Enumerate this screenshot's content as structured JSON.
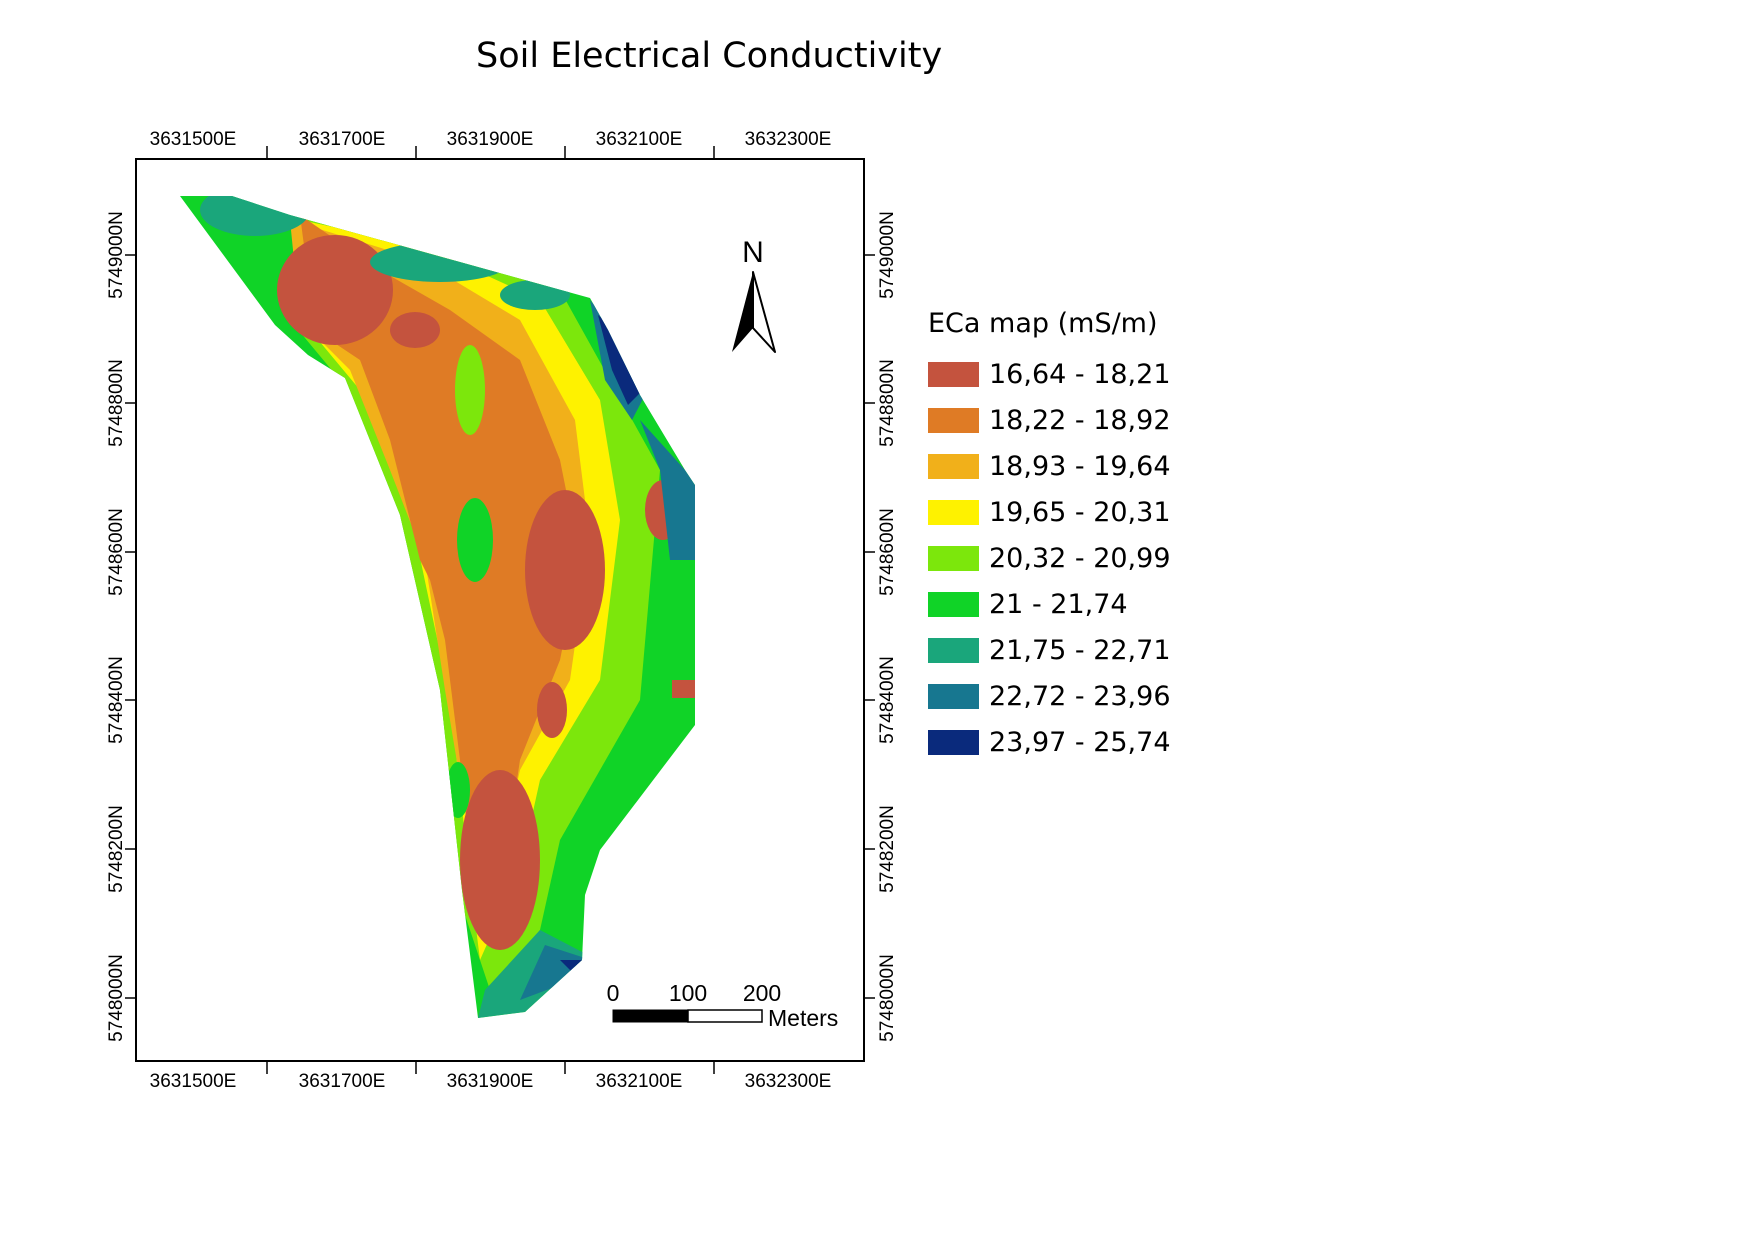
{
  "title": "Soil Electrical Conductivity",
  "easting_labels": [
    "3631500E",
    "3631700E",
    "3631900E",
    "3632100E",
    "3632300E"
  ],
  "northing_labels": [
    "5749000N",
    "5748800N",
    "5748600N",
    "5748400N",
    "5748200N",
    "5748000N"
  ],
  "north_arrow": {
    "label": "N",
    "icon": "north-arrow-icon"
  },
  "scale_bar": {
    "ticks": [
      "0",
      "100",
      "200"
    ],
    "unit": "Meters"
  },
  "legend": {
    "title": "ECa map (mS/m)",
    "items": [
      {
        "label": "16,64 - 18,21",
        "color": "#c4533e"
      },
      {
        "label": "18,22 - 18,92",
        "color": "#df7b25"
      },
      {
        "label": "18,93 - 19,64",
        "color": "#f1b01a"
      },
      {
        "label": "19,65 - 20,31",
        "color": "#fef200"
      },
      {
        "label": "20,32 - 20,99",
        "color": "#7ce70c"
      },
      {
        "label": "21 - 21,74",
        "color": "#10d327"
      },
      {
        "label": "21,75 - 22,71",
        "color": "#1aa67b"
      },
      {
        "label": "22,72 - 23,96",
        "color": "#177790"
      },
      {
        "label": "23,97 - 25,74",
        "color": "#0a2a7c"
      }
    ]
  }
}
